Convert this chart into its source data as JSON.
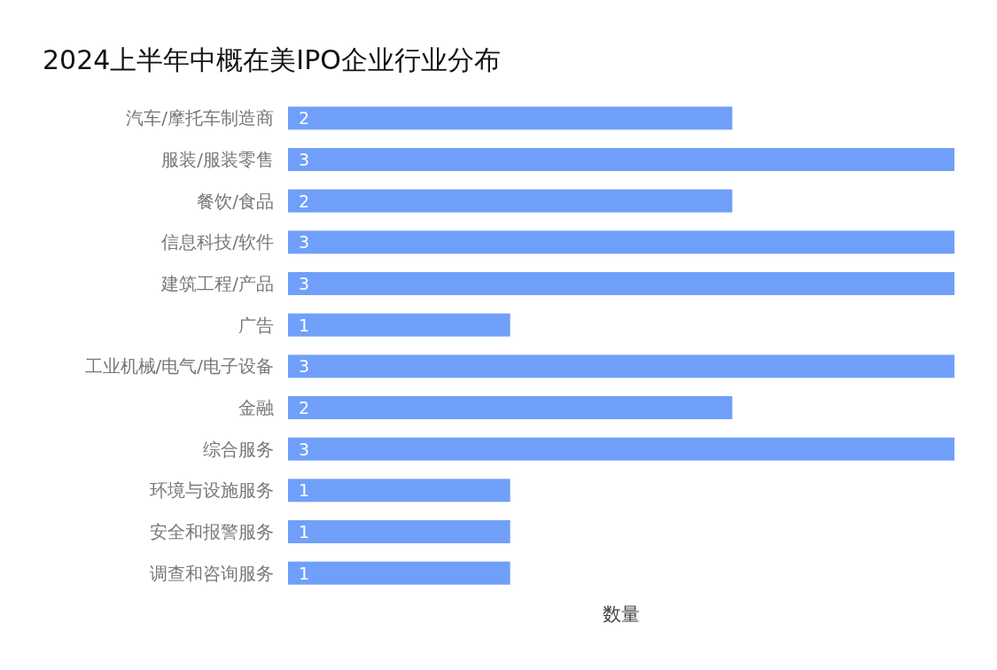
{
  "chart_data": {
    "type": "bar",
    "orientation": "horizontal",
    "title": "2024上半年中概在美IPO企业行业分布",
    "xlabel": "数量",
    "categories": [
      "汽车/摩托车制造商",
      "服装/服装零售",
      "餐饮/食品",
      "信息科技/软件",
      "建筑工程/产品",
      "广告",
      "工业机械/电气/电子设备",
      "金融",
      "综合服务",
      "环境与设施服务",
      "安全和报警服务",
      "调查和咨询服务"
    ],
    "values": [
      2,
      3,
      2,
      3,
      3,
      1,
      3,
      2,
      3,
      1,
      1,
      1
    ],
    "color": "#709ffa",
    "data_labels": true
  }
}
